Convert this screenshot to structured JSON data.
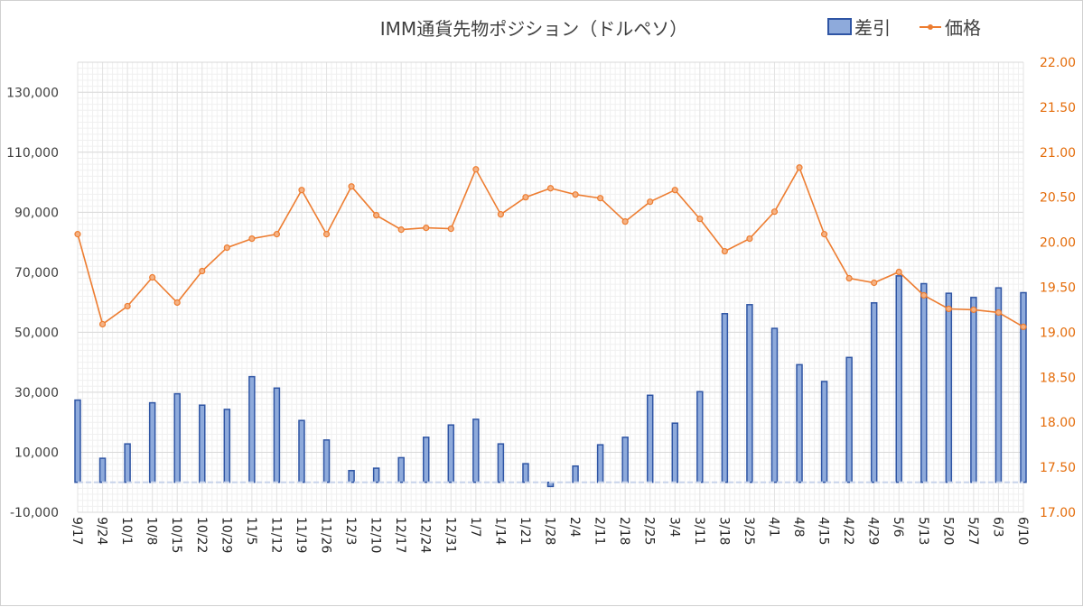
{
  "chart_data": {
    "type": "bar+line",
    "title": "IMM通貨先物ポジション（ドルペソ）",
    "categories": [
      "9/17",
      "9/24",
      "10/1",
      "10/8",
      "10/15",
      "10/22",
      "10/29",
      "11/5",
      "11/12",
      "11/19",
      "11/26",
      "12/3",
      "12/10",
      "12/17",
      "12/24",
      "12/31",
      "1/7",
      "1/14",
      "1/21",
      "1/28",
      "2/4",
      "2/11",
      "2/18",
      "2/25",
      "3/4",
      "3/11",
      "3/18",
      "3/25",
      "4/1",
      "4/8",
      "4/15",
      "4/22",
      "4/29",
      "5/6",
      "5/13",
      "5/20",
      "5/27",
      "6/3",
      "6/10"
    ],
    "series": [
      {
        "name": "差引",
        "type": "bar",
        "axis": "left",
        "color": "#4472c4",
        "values": [
          27400,
          8000,
          12800,
          26500,
          29500,
          25700,
          24300,
          35200,
          31400,
          20600,
          14100,
          3900,
          4700,
          8200,
          15000,
          19100,
          21000,
          12800,
          6200,
          -1400,
          5400,
          12500,
          15000,
          29000,
          19700,
          30200,
          56200,
          59200,
          51300,
          39200,
          33600,
          41600,
          59800,
          68800,
          66200,
          63000,
          61600,
          64800,
          63200
        ]
      },
      {
        "name": "価格",
        "type": "line",
        "axis": "right",
        "color": "#ed7d31",
        "values": [
          20.09,
          19.09,
          19.29,
          19.61,
          19.33,
          19.68,
          19.94,
          20.04,
          20.09,
          20.58,
          20.09,
          20.62,
          20.3,
          20.14,
          20.16,
          20.15,
          20.81,
          20.31,
          20.5,
          20.6,
          20.53,
          20.49,
          20.23,
          20.45,
          20.58,
          20.26,
          19.9,
          20.04,
          20.34,
          20.83,
          20.09,
          19.6,
          19.55,
          19.67,
          19.41,
          19.26,
          19.25,
          19.22,
          19.06
        ]
      }
    ],
    "y_left": {
      "min": -10000,
      "max": 140000,
      "ticks": [
        -10000,
        10000,
        30000,
        50000,
        70000,
        90000,
        110000,
        130000
      ],
      "tick_labels": [
        "-10,000",
        "10,000",
        "30,000",
        "50,000",
        "70,000",
        "90,000",
        "110,000",
        "130,000"
      ]
    },
    "y_right": {
      "min": 17.0,
      "max": 22.0,
      "ticks": [
        17,
        17.5,
        18,
        18.5,
        19,
        19.5,
        20,
        20.5,
        21,
        21.5,
        22
      ],
      "tick_labels": [
        "17.00",
        "17.50",
        "18.00",
        "18.50",
        "19.00",
        "19.50",
        "20.00",
        "20.50",
        "21.00",
        "21.50",
        "22.00"
      ]
    },
    "negative_label_color": "#c00000",
    "legend_position": "top-right",
    "grid": true
  }
}
